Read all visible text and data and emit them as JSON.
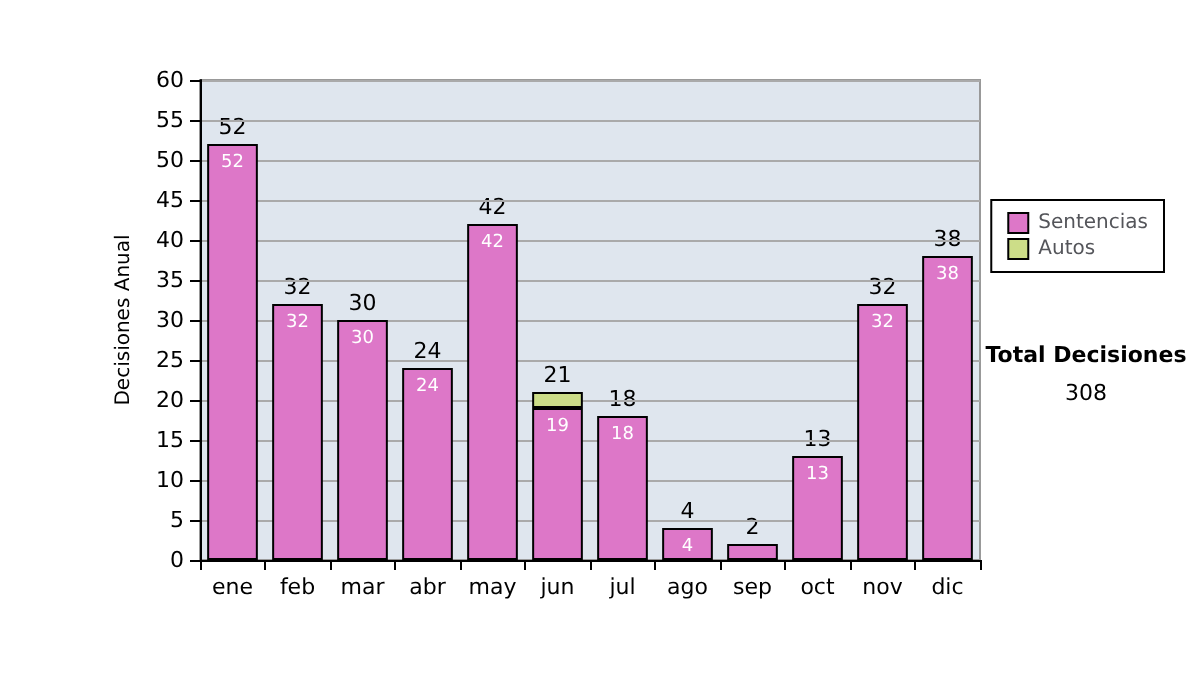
{
  "chart_data": {
    "type": "bar",
    "stacked": true,
    "ylabel": "Decisiones Anual",
    "categories": [
      "ene",
      "feb",
      "mar",
      "abr",
      "may",
      "jun",
      "jul",
      "ago",
      "sep",
      "oct",
      "nov",
      "dic"
    ],
    "series": [
      {
        "name": "Sentencias",
        "color": "#dd77c8",
        "values": [
          52,
          32,
          30,
          24,
          42,
          19,
          18,
          4,
          2,
          13,
          32,
          38
        ],
        "value_labels": [
          "52",
          "32",
          "30",
          "24",
          "42",
          "19",
          "18",
          "4",
          null,
          "13",
          "32",
          "38"
        ]
      },
      {
        "name": "Autos",
        "color": "#ccdd88",
        "values": [
          null,
          null,
          null,
          null,
          null,
          2,
          null,
          null,
          null,
          null,
          null,
          null
        ]
      }
    ],
    "totals": [
      "52",
      "32",
      "30",
      "24",
      "42",
      "21",
      "18",
      "4",
      "2",
      "13",
      "32",
      "38"
    ],
    "ylim": [
      0,
      60
    ],
    "yticks": [
      0,
      5,
      10,
      15,
      20,
      25,
      30,
      35,
      40,
      45,
      50,
      55,
      60
    ],
    "grid": "y",
    "legend": "right",
    "annotations": [
      "Total Decisiones",
      "308"
    ]
  }
}
